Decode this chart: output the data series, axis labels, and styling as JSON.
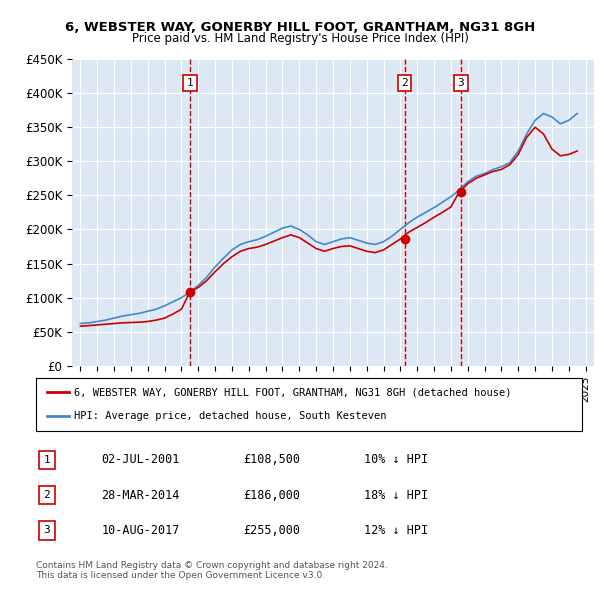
{
  "title": "6, WEBSTER WAY, GONERBY HILL FOOT, GRANTHAM, NG31 8GH",
  "subtitle": "Price paid vs. HM Land Registry's House Price Index (HPI)",
  "xlabel": "",
  "ylabel": "",
  "ylim": [
    0,
    450000
  ],
  "yticks": [
    0,
    50000,
    100000,
    150000,
    200000,
    250000,
    300000,
    350000,
    400000,
    450000
  ],
  "ytick_labels": [
    "£0",
    "£50K",
    "£100K",
    "£150K",
    "£200K",
    "£250K",
    "£300K",
    "£350K",
    "£400K",
    "£450K"
  ],
  "background_color": "#dde8f5",
  "plot_bg_color": "#dde8f5",
  "red_line_color": "#cc0000",
  "blue_line_color": "#4488cc",
  "sale_marker_color": "#cc0000",
  "dashed_color": "#cc0000",
  "legend_label_red": "6, WEBSTER WAY, GONERBY HILL FOOT, GRANTHAM, NG31 8GH (detached house)",
  "legend_label_blue": "HPI: Average price, detached house, South Kesteven",
  "sales": [
    {
      "num": 1,
      "date": "02-JUL-2001",
      "price": "£108,500",
      "pct": "10%",
      "dir": "↓",
      "year": 2001.5
    },
    {
      "num": 2,
      "date": "28-MAR-2014",
      "price": "£186,000",
      "pct": "18%",
      "dir": "↓",
      "year": 2014.25
    },
    {
      "num": 3,
      "date": "10-AUG-2017",
      "price": "£255,000",
      "pct": "12%",
      "dir": "↓",
      "year": 2017.6
    }
  ],
  "footnote": "Contains HM Land Registry data © Crown copyright and database right 2024.\nThis data is licensed under the Open Government Licence v3.0.",
  "hpi_years": [
    1995,
    1995.5,
    1996,
    1996.5,
    1997,
    1997.5,
    1998,
    1998.5,
    1999,
    1999.5,
    2000,
    2000.5,
    2001,
    2001.5,
    2002,
    2002.5,
    2003,
    2003.5,
    2004,
    2004.5,
    2005,
    2005.5,
    2006,
    2006.5,
    2007,
    2007.5,
    2008,
    2008.5,
    2009,
    2009.5,
    2010,
    2010.5,
    2011,
    2011.5,
    2012,
    2012.5,
    2013,
    2013.5,
    2014,
    2014.5,
    2015,
    2015.5,
    2016,
    2016.5,
    2017,
    2017.5,
    2018,
    2018.5,
    2019,
    2019.5,
    2020,
    2020.5,
    2021,
    2021.5,
    2022,
    2022.5,
    2023,
    2023.5,
    2024,
    2024.5
  ],
  "hpi_values": [
    62000,
    63000,
    65000,
    67000,
    70000,
    73000,
    75000,
    77000,
    80000,
    83000,
    88000,
    94000,
    100000,
    108000,
    118000,
    130000,
    145000,
    158000,
    170000,
    178000,
    182000,
    185000,
    190000,
    196000,
    202000,
    205000,
    200000,
    192000,
    182000,
    178000,
    182000,
    186000,
    188000,
    184000,
    180000,
    178000,
    182000,
    190000,
    200000,
    210000,
    218000,
    225000,
    232000,
    240000,
    248000,
    258000,
    270000,
    278000,
    282000,
    288000,
    292000,
    298000,
    315000,
    340000,
    360000,
    370000,
    365000,
    355000,
    360000,
    370000
  ],
  "red_years": [
    1995,
    1995.5,
    1996,
    1996.5,
    1997,
    1997.5,
    1998,
    1998.5,
    1999,
    1999.5,
    2000,
    2000.5,
    2001,
    2001.5,
    2002,
    2002.5,
    2003,
    2003.5,
    2004,
    2004.5,
    2005,
    2005.5,
    2006,
    2006.5,
    2007,
    2007.5,
    2008,
    2008.5,
    2009,
    2009.5,
    2010,
    2010.5,
    2011,
    2011.5,
    2012,
    2012.5,
    2013,
    2013.5,
    2014,
    2014.5,
    2015,
    2015.5,
    2016,
    2016.5,
    2017,
    2017.5,
    2018,
    2018.5,
    2019,
    2019.5,
    2020,
    2020.5,
    2021,
    2021.5,
    2022,
    2022.5,
    2023,
    2023.5,
    2024,
    2024.5
  ],
  "red_values": [
    58000,
    59000,
    60000,
    61000,
    62000,
    63000,
    63500,
    64000,
    65000,
    67000,
    70000,
    76000,
    83000,
    108500,
    115000,
    125000,
    138000,
    150000,
    160000,
    168000,
    172000,
    174000,
    178000,
    183000,
    188000,
    192000,
    188000,
    180000,
    172000,
    168000,
    172000,
    175000,
    176000,
    172000,
    168000,
    166000,
    170000,
    178000,
    186000,
    196000,
    203000,
    210000,
    218000,
    225000,
    233000,
    255000,
    267000,
    275000,
    280000,
    285000,
    288000,
    295000,
    310000,
    335000,
    350000,
    340000,
    318000,
    308000,
    310000,
    315000
  ]
}
